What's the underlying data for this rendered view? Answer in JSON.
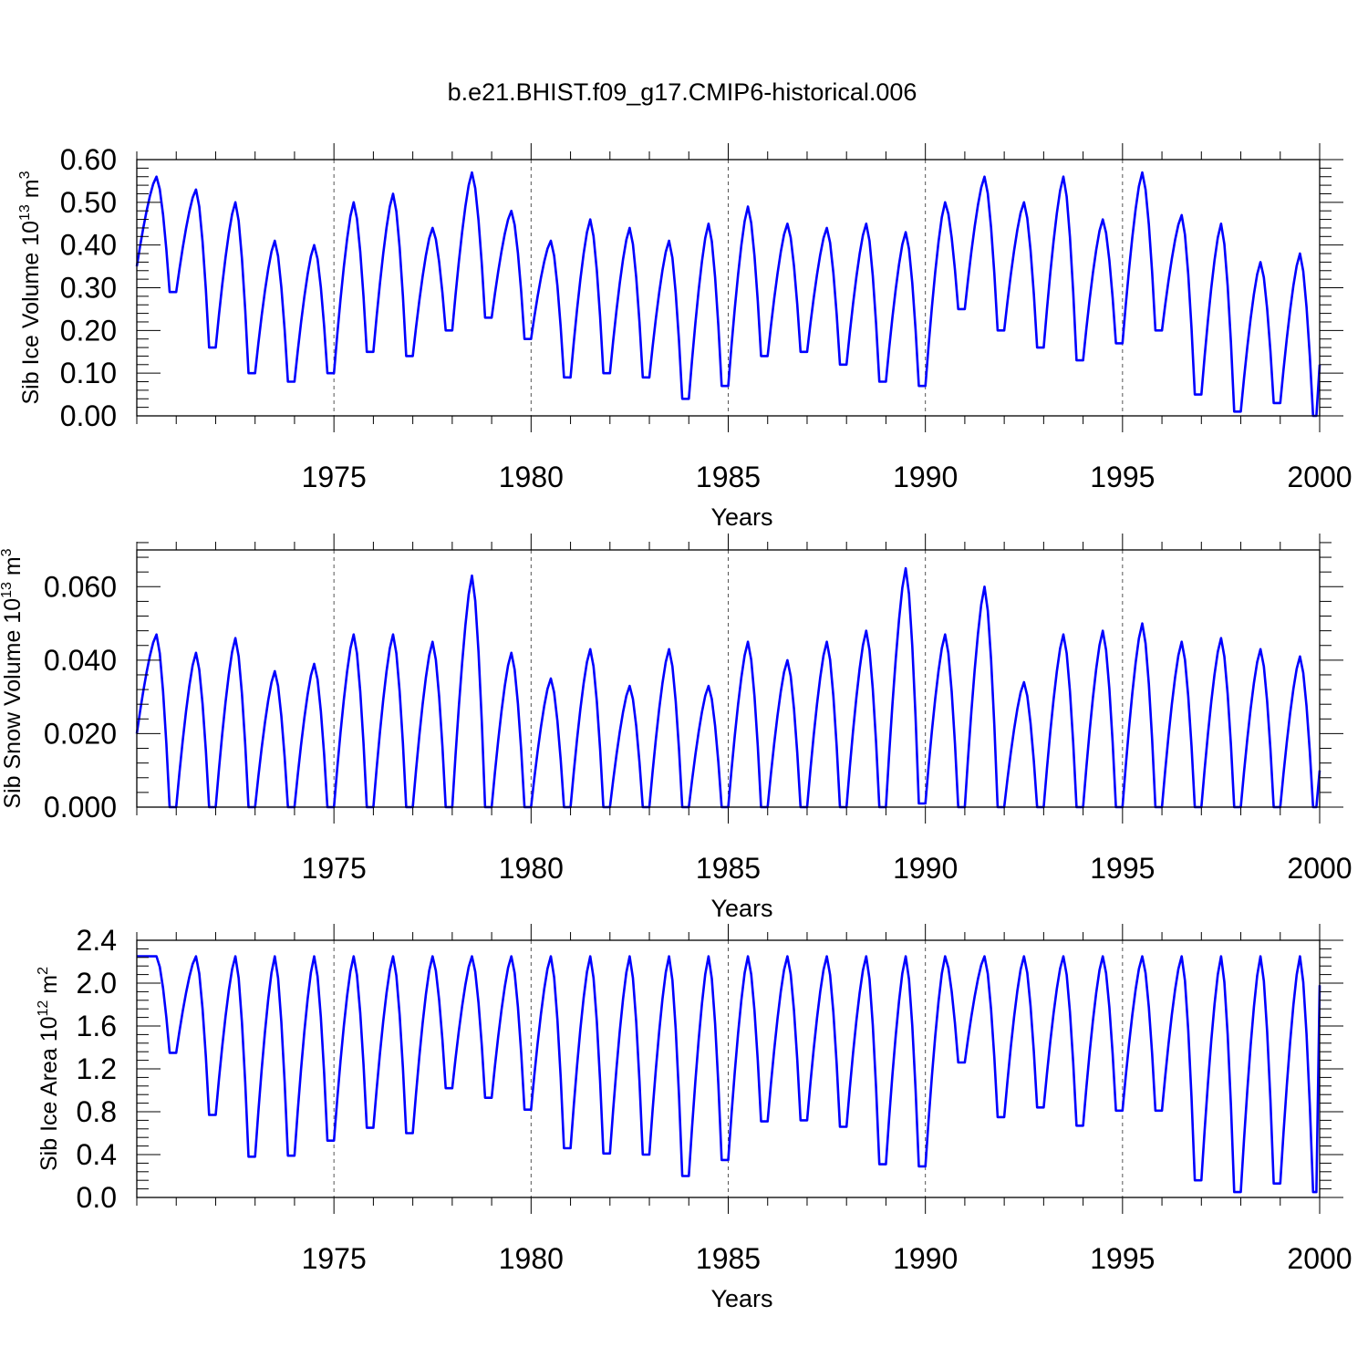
{
  "title": "b.e21.BHIST.f09_g17.CMIP6-historical.006",
  "series_color": "#0000ff",
  "chart_data": [
    {
      "type": "line",
      "title": "b.e21.BHIST.f09_g17.CMIP6-historical.006",
      "xlabel": "Years",
      "ylabel_base": "Sib Ice Volume 10",
      "ylabel_exp": "13",
      "ylabel_unit": " m",
      "ylabel_unit_exp": "3",
      "xlim": [
        1970,
        2000
      ],
      "ylim": [
        0,
        0.6
      ],
      "xticks": [
        1975,
        1980,
        1985,
        1990,
        1995,
        2000
      ],
      "xtick_labels": [
        "1975",
        "1980",
        "1985",
        "1990",
        "1995",
        "2000"
      ],
      "yticks": [
        0,
        0.1,
        0.2,
        0.3,
        0.4,
        0.5,
        0.6
      ],
      "ytick_labels": [
        "0.00",
        "0.10",
        "0.20",
        "0.30",
        "0.40",
        "0.50",
        "0.60"
      ],
      "vgrid": [
        1975,
        1980,
        1985,
        1990,
        1995
      ],
      "series": [
        {
          "name": "Sib Ice Volume",
          "peaks": [
            0.56,
            0.53,
            0.5,
            0.41,
            0.4,
            0.5,
            0.52,
            0.44,
            0.57,
            0.48,
            0.41,
            0.46,
            0.44,
            0.41,
            0.45,
            0.49,
            0.45,
            0.44,
            0.45,
            0.43,
            0.5,
            0.56,
            0.5,
            0.56,
            0.46,
            0.57,
            0.47,
            0.45,
            0.36,
            0.38
          ],
          "troughs": [
            0.35,
            0.29,
            0.16,
            0.1,
            0.08,
            0.1,
            0.15,
            0.14,
            0.2,
            0.23,
            0.18,
            0.09,
            0.1,
            0.09,
            0.04,
            0.07,
            0.14,
            0.15,
            0.12,
            0.08,
            0.07,
            0.25,
            0.2,
            0.16,
            0.13,
            0.17,
            0.2,
            0.05,
            0.01,
            0.03,
            0.0
          ],
          "end_value": 0.12
        }
      ]
    },
    {
      "type": "line",
      "xlabel": "Years",
      "ylabel_base": "Sib Snow Volume 10",
      "ylabel_exp": "13",
      "ylabel_unit": " m",
      "ylabel_unit_exp": "3",
      "xlim": [
        1970,
        2000
      ],
      "ylim": [
        0,
        0.07
      ],
      "xticks": [
        1975,
        1980,
        1985,
        1990,
        1995,
        2000
      ],
      "xtick_labels": [
        "1975",
        "1980",
        "1985",
        "1990",
        "1995",
        "2000"
      ],
      "yticks": [
        0,
        0.02,
        0.04,
        0.06
      ],
      "ytick_labels": [
        "0.000",
        "0.020",
        "0.040",
        "0.060"
      ],
      "vgrid": [
        1975,
        1980,
        1985,
        1990,
        1995
      ],
      "series": [
        {
          "name": "Sib Snow Volume",
          "peaks": [
            0.047,
            0.042,
            0.046,
            0.037,
            0.039,
            0.047,
            0.047,
            0.045,
            0.063,
            0.042,
            0.035,
            0.043,
            0.033,
            0.043,
            0.033,
            0.045,
            0.04,
            0.045,
            0.048,
            0.065,
            0.047,
            0.06,
            0.034,
            0.047,
            0.048,
            0.05,
            0.045,
            0.046,
            0.043,
            0.041
          ],
          "troughs": [
            0.02,
            0.0,
            0.0,
            0.0,
            0.0,
            0.0,
            0.0,
            0.0,
            0.0,
            0.0,
            0.0,
            0.0,
            0.0,
            0.0,
            0.0,
            0.0,
            0.0,
            0.0,
            0.0,
            0.0,
            0.001,
            0.0,
            0.0,
            0.0,
            0.0,
            0.0,
            0.0,
            0.0,
            0.0,
            0.0,
            0.0
          ],
          "end_value": 0.01
        }
      ]
    },
    {
      "type": "line",
      "xlabel": "Years",
      "ylabel_base": "Sib Ice Area 10",
      "ylabel_exp": "12",
      "ylabel_unit": " m",
      "ylabel_unit_exp": "2",
      "xlim": [
        1970,
        2000
      ],
      "ylim": [
        0,
        2.4
      ],
      "xticks": [
        1975,
        1980,
        1985,
        1990,
        1995,
        2000
      ],
      "xtick_labels": [
        "1975",
        "1980",
        "1985",
        "1990",
        "1995",
        "2000"
      ],
      "yticks": [
        0,
        0.4,
        0.8,
        1.2,
        1.6,
        2.0,
        2.4
      ],
      "ytick_labels": [
        "0.0",
        "0.4",
        "0.8",
        "1.2",
        "1.6",
        "2.0",
        "2.4"
      ],
      "vgrid": [
        1975,
        1980,
        1985,
        1990,
        1995
      ],
      "series": [
        {
          "name": "Sib Ice Area",
          "peaks": [
            2.25,
            2.25,
            2.25,
            2.25,
            2.25,
            2.25,
            2.25,
            2.25,
            2.25,
            2.25,
            2.25,
            2.25,
            2.25,
            2.25,
            2.25,
            2.25,
            2.25,
            2.25,
            2.25,
            2.25,
            2.25,
            2.25,
            2.25,
            2.25,
            2.25,
            2.25,
            2.25,
            2.25,
            2.25,
            2.25
          ],
          "troughs": [
            2.25,
            1.35,
            0.77,
            0.38,
            0.39,
            0.53,
            0.65,
            0.6,
            1.02,
            0.93,
            0.82,
            0.46,
            0.41,
            0.4,
            0.2,
            0.35,
            0.71,
            0.72,
            0.66,
            0.31,
            0.29,
            1.26,
            0.75,
            0.84,
            0.67,
            0.81,
            0.81,
            0.16,
            0.05,
            0.13,
            0.05
          ],
          "end_value": 1.98
        }
      ]
    }
  ]
}
